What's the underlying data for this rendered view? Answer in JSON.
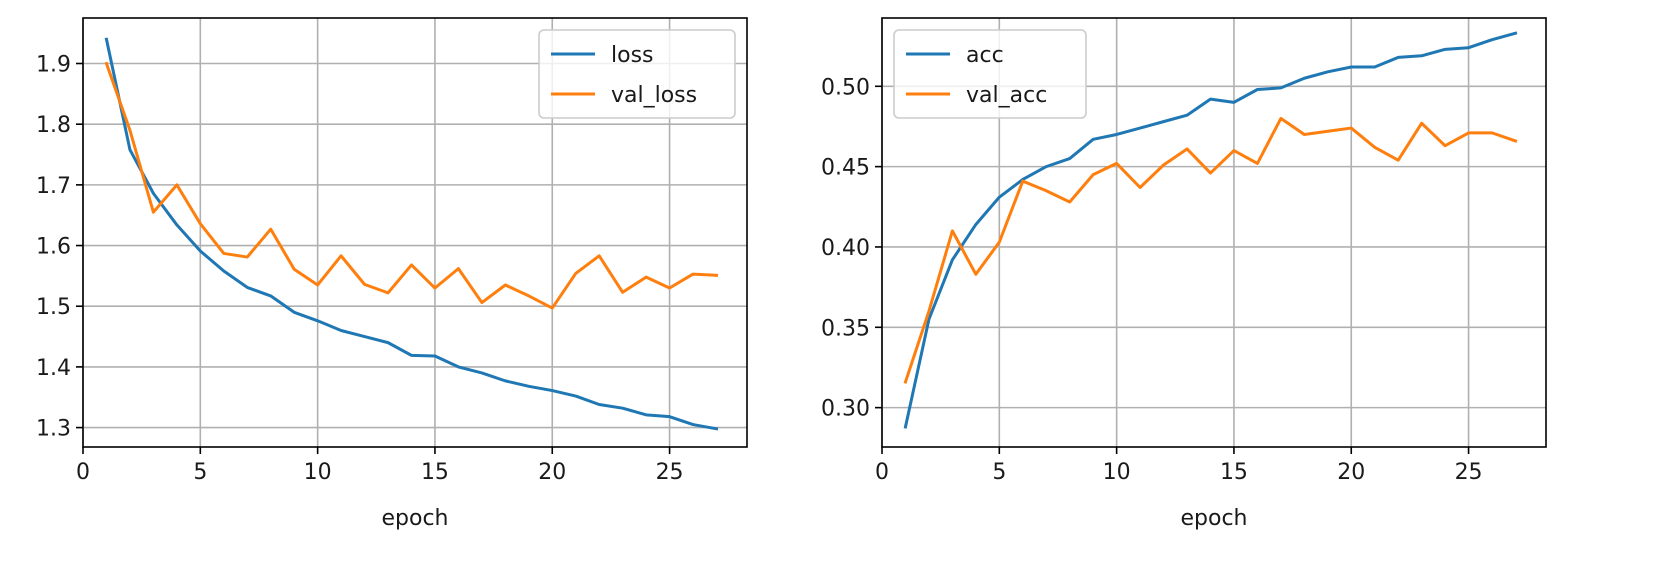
{
  "chart_data": [
    {
      "type": "line",
      "xlabel": "epoch",
      "ylabel": "",
      "xlim": [
        0.0,
        28.3
      ],
      "ylim": [
        1.268,
        1.975
      ],
      "xticks": [
        0,
        5,
        10,
        15,
        20,
        25
      ],
      "yticks": [
        1.3,
        1.4,
        1.5,
        1.6,
        1.7,
        1.8,
        1.9
      ],
      "ytick_labels": [
        "1.3",
        "1.4",
        "1.5",
        "1.6",
        "1.7",
        "1.8",
        "1.9"
      ],
      "grid": true,
      "legend": "top-right",
      "x": [
        1,
        2,
        3,
        4,
        5,
        6,
        7,
        8,
        9,
        10,
        11,
        12,
        13,
        14,
        15,
        16,
        17,
        18,
        19,
        20,
        21,
        22,
        23,
        24,
        25,
        26,
        27
      ],
      "series": [
        {
          "name": "loss",
          "color": "#1f77b4",
          "values": [
            1.94,
            1.758,
            1.686,
            1.634,
            1.591,
            1.558,
            1.531,
            1.517,
            1.49,
            1.476,
            1.46,
            1.45,
            1.44,
            1.419,
            1.418,
            1.4,
            1.39,
            1.377,
            1.368,
            1.361,
            1.352,
            1.338,
            1.332,
            1.321,
            1.318,
            1.305,
            1.298
          ]
        },
        {
          "name": "val_loss",
          "color": "#ff7f0e",
          "values": [
            1.9,
            1.79,
            1.655,
            1.7,
            1.636,
            1.587,
            1.581,
            1.627,
            1.561,
            1.535,
            1.583,
            1.536,
            1.522,
            1.568,
            1.53,
            1.562,
            1.506,
            1.535,
            1.517,
            1.497,
            1.554,
            1.583,
            1.523,
            1.548,
            1.53,
            1.553,
            1.551
          ]
        }
      ]
    },
    {
      "type": "line",
      "xlabel": "epoch",
      "ylabel": "",
      "xlim": [
        0.0,
        28.3
      ],
      "ylim": [
        0.2755,
        0.5425
      ],
      "xticks": [
        0,
        5,
        10,
        15,
        20,
        25
      ],
      "yticks": [
        0.3,
        0.35,
        0.4,
        0.45,
        0.5
      ],
      "ytick_labels": [
        "0.30",
        "0.35",
        "0.40",
        "0.45",
        "0.50"
      ],
      "grid": true,
      "legend": "top-left",
      "x": [
        1,
        2,
        3,
        4,
        5,
        6,
        7,
        8,
        9,
        10,
        11,
        12,
        13,
        14,
        15,
        16,
        17,
        18,
        19,
        20,
        21,
        22,
        23,
        24,
        25,
        26,
        27
      ],
      "series": [
        {
          "name": "acc",
          "color": "#1f77b4",
          "values": [
            0.288,
            0.355,
            0.392,
            0.414,
            0.431,
            0.442,
            0.45,
            0.455,
            0.467,
            0.47,
            0.474,
            0.478,
            0.482,
            0.492,
            0.49,
            0.498,
            0.499,
            0.505,
            0.509,
            0.512,
            0.512,
            0.518,
            0.519,
            0.523,
            0.524,
            0.529,
            0.533
          ]
        },
        {
          "name": "val_acc",
          "color": "#ff7f0e",
          "values": [
            0.316,
            0.36,
            0.41,
            0.383,
            0.403,
            0.441,
            0.435,
            0.428,
            0.445,
            0.452,
            0.437,
            0.451,
            0.461,
            0.446,
            0.46,
            0.452,
            0.48,
            0.47,
            0.472,
            0.474,
            0.462,
            0.454,
            0.477,
            0.463,
            0.471,
            0.471,
            0.466
          ]
        }
      ]
    }
  ]
}
